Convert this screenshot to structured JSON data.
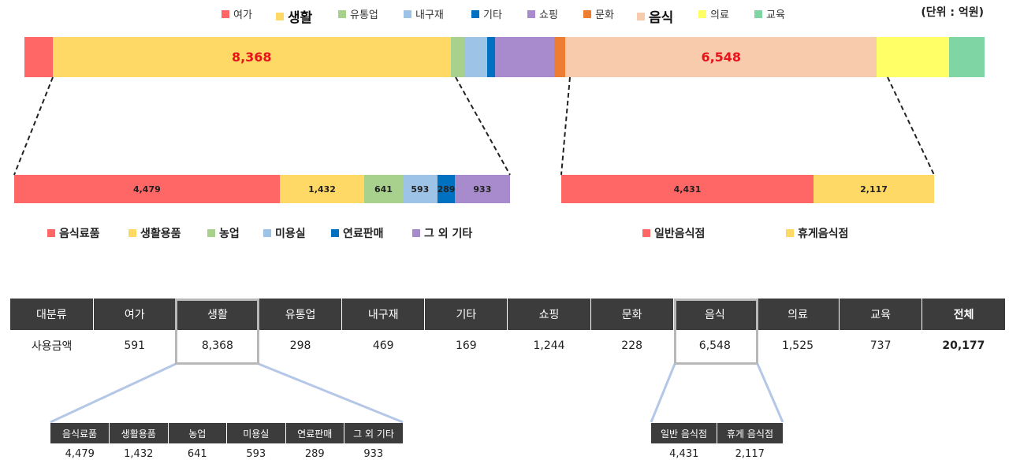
{
  "unit_label": "(단위 : 억원)",
  "chart_data": [
    {
      "type": "bar",
      "orientation": "horizontal-stacked",
      "title": "",
      "series": [
        {
          "name": "여가",
          "value": 591,
          "color": "#ff6666"
        },
        {
          "name": "생활",
          "value": 8368,
          "color": "#ffd966",
          "label": "8,368"
        },
        {
          "name": "유통업",
          "value": 298,
          "color": "#a9d18e"
        },
        {
          "name": "내구재",
          "value": 469,
          "color": "#9dc3e6"
        },
        {
          "name": "기타",
          "value": 169,
          "color": "#0070c0"
        },
        {
          "name": "쇼핑",
          "value": 1244,
          "color": "#a78bcc"
        },
        {
          "name": "문화",
          "value": 228,
          "color": "#ed7d31"
        },
        {
          "name": "음식",
          "value": 6548,
          "color": "#f8cbad",
          "label": "6,548"
        },
        {
          "name": "의료",
          "value": 1525,
          "color": "#ffff66"
        },
        {
          "name": "교육",
          "value": 737,
          "color": "#7fd6a4"
        }
      ],
      "emphasized_legend": [
        "생활",
        "음식"
      ]
    },
    {
      "type": "bar",
      "orientation": "horizontal-stacked",
      "title": "",
      "parent": "생활",
      "series": [
        {
          "name": "음식료품",
          "value": 4479,
          "color": "#ff6666",
          "label": "4,479"
        },
        {
          "name": "생활용품",
          "value": 1432,
          "color": "#ffd966",
          "label": "1,432"
        },
        {
          "name": "농업",
          "value": 641,
          "color": "#a9d18e",
          "label": "641"
        },
        {
          "name": "미용실",
          "value": 593,
          "color": "#9dc3e6",
          "label": "593"
        },
        {
          "name": "연료판매",
          "value": 289,
          "color": "#0070c0",
          "label": "289"
        },
        {
          "name": "그 외 기타",
          "value": 933,
          "color": "#a78bcc",
          "label": "933"
        }
      ]
    },
    {
      "type": "bar",
      "orientation": "horizontal-stacked",
      "title": "",
      "parent": "음식",
      "series": [
        {
          "name": "일반음식점",
          "value": 4431,
          "color": "#ff6666",
          "label": "4,431"
        },
        {
          "name": "휴게음식점",
          "value": 2117,
          "color": "#ffd966",
          "label": "2,117"
        }
      ]
    }
  ],
  "main_table": {
    "headers": [
      "대분류",
      "여가",
      "생활",
      "유통업",
      "내구재",
      "기타",
      "쇼핑",
      "문화",
      "음식",
      "의료",
      "교육",
      "전체"
    ],
    "row": [
      "사용금액",
      "591",
      "8,368",
      "298",
      "469",
      "169",
      "1,244",
      "228",
      "6,548",
      "1,525",
      "737",
      "20,177"
    ]
  },
  "sub_table_life": {
    "headers": [
      "음식료품",
      "생활용품",
      "농업",
      "미용실",
      "연료판매",
      "그 외 기타"
    ],
    "row": [
      "4,479",
      "1,432",
      "641",
      "593",
      "289",
      "933"
    ]
  },
  "sub_table_food": {
    "headers": [
      "일반 음식점",
      "휴게 음식점"
    ],
    "row": [
      "4,431",
      "2,117"
    ]
  }
}
